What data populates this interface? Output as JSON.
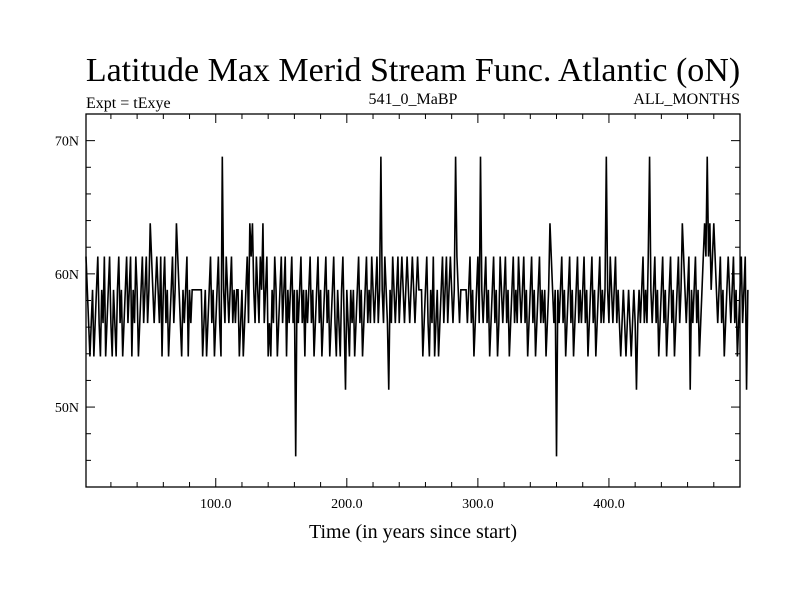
{
  "chart_data": {
    "type": "line",
    "title": "Latitude Max Merid Stream Func. Atlantic (oN)",
    "left_string": "Expt = tExye",
    "center_string": "541_0_MaBP",
    "right_string": "ALL_MONTHS",
    "xlabel": "Time (in years since start)",
    "ylabel": "",
    "xlim": [
      1,
      500
    ],
    "ylim": [
      44,
      72
    ],
    "x_ticks": [
      100,
      200,
      300,
      400
    ],
    "x_tick_labels": [
      "100.0",
      "200.0",
      "300.0",
      "400.0"
    ],
    "y_ticks": [
      50,
      60,
      70
    ],
    "y_tick_labels": [
      "50N",
      "60N",
      "70N"
    ],
    "grid": false,
    "colors": {
      "line": "#000000",
      "axes": "#000000",
      "background": "#ffffff"
    },
    "series": [
      {
        "x_start": 1,
        "x_step": 1,
        "values": [
          61.3,
          58.8,
          56.3,
          53.8,
          56.3,
          58.8,
          53.8,
          56.3,
          58.8,
          61.3,
          56.3,
          53.8,
          58.8,
          56.3,
          61.3,
          53.8,
          56.3,
          58.8,
          61.3,
          56.3,
          53.8,
          58.8,
          56.3,
          53.8,
          58.8,
          61.3,
          56.3,
          58.8,
          53.8,
          56.3,
          58.8,
          61.3,
          56.3,
          58.8,
          61.3,
          53.8,
          58.8,
          56.3,
          61.3,
          58.8,
          53.8,
          56.3,
          58.8,
          61.3,
          56.3,
          58.8,
          61.3,
          56.3,
          58.8,
          63.8,
          61.3,
          58.8,
          56.3,
          58.8,
          61.3,
          58.8,
          56.3,
          61.3,
          53.8,
          58.8,
          61.3,
          56.3,
          58.8,
          53.8,
          56.3,
          58.8,
          61.3,
          56.3,
          58.8,
          63.8,
          61.3,
          58.8,
          56.3,
          53.8,
          58.8,
          56.3,
          58.8,
          61.3,
          53.8,
          58.8,
          56.3,
          58.8,
          58.8,
          58.8,
          58.8,
          58.8,
          58.8,
          58.8,
          58.8,
          53.8,
          56.3,
          58.8,
          53.8,
          56.3,
          58.8,
          61.3,
          56.3,
          58.8,
          53.8,
          56.3,
          58.8,
          61.3,
          56.3,
          53.8,
          68.8,
          58.8,
          56.3,
          61.3,
          58.8,
          56.3,
          58.8,
          61.3,
          56.3,
          58.8,
          56.3,
          58.8,
          58.8,
          53.8,
          56.3,
          58.8,
          53.8,
          56.3,
          58.8,
          61.3,
          56.3,
          63.8,
          61.3,
          63.8,
          58.8,
          56.3,
          61.3,
          58.8,
          56.3,
          61.3,
          58.8,
          63.8,
          56.3,
          58.8,
          61.3,
          53.8,
          56.3,
          53.8,
          58.8,
          56.3,
          61.3,
          58.8,
          53.8,
          56.3,
          58.8,
          61.3,
          56.3,
          58.8,
          61.3,
          53.8,
          58.8,
          56.3,
          58.8,
          61.3,
          56.3,
          58.8,
          46.3,
          58.8,
          56.3,
          58.8,
          61.3,
          56.3,
          58.8,
          53.8,
          58.8,
          56.3,
          58.8,
          61.3,
          56.3,
          58.8,
          53.8,
          56.3,
          58.8,
          61.3,
          56.3,
          58.8,
          53.8,
          56.3,
          58.8,
          61.3,
          56.3,
          58.8,
          53.8,
          56.3,
          58.8,
          61.3,
          56.3,
          53.8,
          58.8,
          56.3,
          53.8,
          58.8,
          61.3,
          56.3,
          51.3,
          58.8,
          56.3,
          53.8,
          58.8,
          56.3,
          58.8,
          53.8,
          56.3,
          58.8,
          61.3,
          56.3,
          58.8,
          53.8,
          56.3,
          58.8,
          61.3,
          56.3,
          58.8,
          56.3,
          61.3,
          58.8,
          56.3,
          58.8,
          61.3,
          56.3,
          58.8,
          68.8,
          58.8,
          56.3,
          61.3,
          58.8,
          56.3,
          51.3,
          58.8,
          56.3,
          61.3,
          58.8,
          56.3,
          58.8,
          61.3,
          56.3,
          58.8,
          61.3,
          58.8,
          56.3,
          58.8,
          61.3,
          58.8,
          56.3,
          58.8,
          61.3,
          58.8,
          56.3,
          58.8,
          61.3,
          58.8,
          58.8,
          58.8,
          53.8,
          56.3,
          58.8,
          61.3,
          56.3,
          53.8,
          58.8,
          56.3,
          61.3,
          53.8,
          56.3,
          58.8,
          53.8,
          56.3,
          58.8,
          61.3,
          56.3,
          58.8,
          61.3,
          56.3,
          58.8,
          61.3,
          58.8,
          56.3,
          58.8,
          68.8,
          61.3,
          58.8,
          56.3,
          58.8,
          58.8,
          58.8,
          58.8,
          58.8,
          56.3,
          58.8,
          61.3,
          56.3,
          58.8,
          53.8,
          56.3,
          58.8,
          61.3,
          56.3,
          68.8,
          58.8,
          56.3,
          58.8,
          61.3,
          56.3,
          58.8,
          53.8,
          56.3,
          58.8,
          61.3,
          56.3,
          58.8,
          53.8,
          56.3,
          61.3,
          58.8,
          56.3,
          58.8,
          61.3,
          56.3,
          58.8,
          53.8,
          56.3,
          58.8,
          61.3,
          56.3,
          58.8,
          56.3,
          61.3,
          58.8,
          56.3,
          58.8,
          61.3,
          56.3,
          58.8,
          53.8,
          56.3,
          58.8,
          61.3,
          56.3,
          58.8,
          53.8,
          56.3,
          58.8,
          61.3,
          56.3,
          58.8,
          56.3,
          58.8,
          53.8,
          56.3,
          58.8,
          63.8,
          61.3,
          58.8,
          56.3,
          58.8,
          46.3,
          58.8,
          56.3,
          58.8,
          61.3,
          56.3,
          58.8,
          53.8,
          56.3,
          58.8,
          61.3,
          56.3,
          58.8,
          53.8,
          56.3,
          58.8,
          61.3,
          56.3,
          58.8,
          56.3,
          58.8,
          61.3,
          56.3,
          58.8,
          53.8,
          56.3,
          58.8,
          61.3,
          56.3,
          58.8,
          53.8,
          56.3,
          58.8,
          61.3,
          56.3,
          58.8,
          56.3,
          58.8,
          68.8,
          58.8,
          56.3,
          61.3,
          58.8,
          56.3,
          58.8,
          61.3,
          56.3,
          58.8,
          56.3,
          53.8,
          56.3,
          58.8,
          56.3,
          53.8,
          56.3,
          58.8,
          56.3,
          53.8,
          56.3,
          58.8,
          56.3,
          51.3,
          56.3,
          58.8,
          56.3,
          58.8,
          61.3,
          56.3,
          58.8,
          56.3,
          61.3,
          68.8,
          58.8,
          56.3,
          58.8,
          61.3,
          56.3,
          58.8,
          53.8,
          56.3,
          58.8,
          61.3,
          56.3,
          58.8,
          53.8,
          56.3,
          58.8,
          61.3,
          56.3,
          58.8,
          53.8,
          56.3,
          58.8,
          61.3,
          56.3,
          58.8,
          63.8,
          61.3,
          58.8,
          56.3,
          58.8,
          61.3,
          51.3,
          58.8,
          56.3,
          58.8,
          61.3,
          56.3,
          58.8,
          53.8,
          56.3,
          58.8,
          61.3,
          63.8,
          61.3,
          68.8,
          61.3,
          63.8,
          58.8,
          61.3,
          63.8,
          61.3,
          58.8,
          56.3,
          58.8,
          61.3,
          56.3,
          58.8,
          53.8,
          56.3,
          58.8,
          61.3,
          58.8,
          56.3,
          58.8,
          61.3,
          56.3,
          58.8,
          53.8,
          56.3,
          58.8,
          61.3,
          56.3,
          58.8,
          61.3,
          51.3,
          58.8
        ]
      }
    ]
  }
}
